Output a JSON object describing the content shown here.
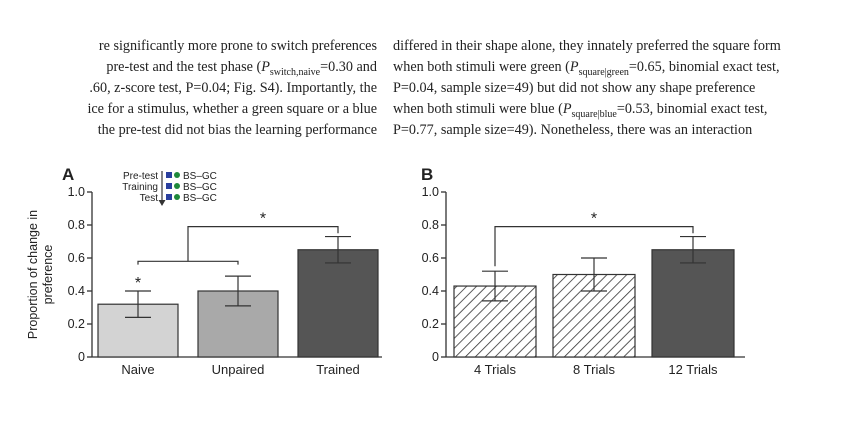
{
  "text": {
    "left_lines": [
      "re significantly more prone to switch preferences",
      "pre-test and the test phase (P_switch,naive=0.30 and",
      ".60, z-score test, P=0.04; Fig. S4). Importantly, the",
      "ice for a stimulus, whether a green square or a blue",
      "the pre-test did not bias the learning performance"
    ],
    "right_lines": [
      "differed in their shape alone, they innately preferred the square form",
      "when both stimuli were green (P_square|green=0.65, binomial exact test,",
      "P=0.04, sample size=49) but did not show any shape preference",
      "when both stimuli were blue (P_square|blue=0.53, binomial exact test,",
      "P=0.77, sample size=49). Nonetheless, there was an interaction"
    ]
  },
  "legend": {
    "rows": [
      {
        "label": "Pre-test",
        "stim": "BS–GC"
      },
      {
        "label": "Training",
        "stim": "BS–GC"
      },
      {
        "label": "Test",
        "stim": "BS–GC"
      }
    ],
    "square_color": "#2a3f9e",
    "circle_color": "#1f8a3c"
  },
  "colors": {
    "naive": "#d3d3d3",
    "unpaired": "#a9a9a9",
    "trained": "#555555",
    "hatch_fill": "#ffffff",
    "hatch_stroke": "#333333"
  },
  "chart_data": [
    {
      "type": "bar",
      "panel_label": "A",
      "categories": [
        "Naive",
        "Unpaired",
        "Trained"
      ],
      "values": [
        0.32,
        0.4,
        0.65
      ],
      "errors": [
        0.08,
        0.09,
        0.08
      ],
      "ylabel": "Proportion of change in\npreference",
      "ylim": [
        0,
        1.0
      ],
      "yticks": [
        0,
        0.2,
        0.4,
        0.6,
        0.8,
        1.0
      ],
      "ytick_labels": [
        "0",
        "0.2",
        "0.4",
        "0.6",
        "0.8",
        "1.0"
      ],
      "bar_styles": [
        "naive",
        "unpaired",
        "trained"
      ],
      "annotations": [
        {
          "text": "*",
          "above": "Naive"
        },
        {
          "text": "*",
          "bracket": [
            "Naive",
            "Unpaired"
          ],
          "vs": "Trained"
        }
      ]
    },
    {
      "type": "bar",
      "panel_label": "B",
      "categories": [
        "4 Trials",
        "8 Trials",
        "12 Trials"
      ],
      "values": [
        0.43,
        0.5,
        0.65
      ],
      "errors": [
        0.09,
        0.1,
        0.08
      ],
      "ylim": [
        0,
        1.0
      ],
      "yticks": [
        0,
        0.2,
        0.4,
        0.6,
        0.8,
        1.0
      ],
      "ytick_labels": [
        "0",
        "0.2",
        "0.4",
        "0.6",
        "0.8",
        "1.0"
      ],
      "bar_styles": [
        "hatch",
        "hatch",
        "trained"
      ],
      "annotations": [
        {
          "text": "*",
          "bracket": [
            "4 Trials",
            "12 Trials"
          ]
        }
      ]
    }
  ]
}
